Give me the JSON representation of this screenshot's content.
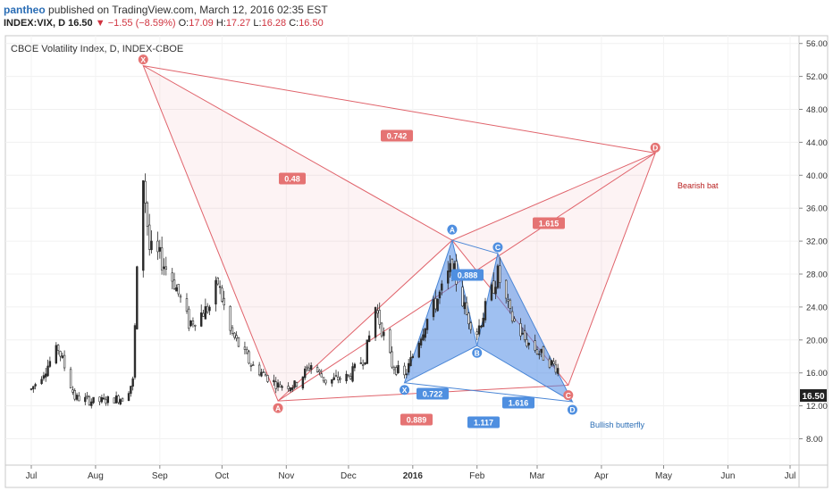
{
  "header": {
    "user": "pantheo",
    "published": "published on TradingView.com, March 12, 2016 02:35 EST",
    "symbol_line": "INDEX:VIX, D",
    "last": "16.50",
    "change": "−1.55 (−8.59%)",
    "o_label": "O:",
    "o": "17.09",
    "h_label": "H:",
    "h": "17.27",
    "l_label": "L:",
    "l": "16.28",
    "c_label": "C:",
    "c": "16.50"
  },
  "chart_data": {
    "type": "candlestick",
    "title": "CBOE Volatility Index, D, INDEX-CBOE",
    "x_ticks": [
      "Jul",
      "Aug",
      "Sep",
      "Oct",
      "Nov",
      "Dec",
      "2016",
      "Feb",
      "Mar",
      "Apr",
      "May",
      "Jun",
      "Jul"
    ],
    "y_ticks": [
      "8.00",
      "12.00",
      "16.00",
      "20.00",
      "24.00",
      "28.00",
      "32.00",
      "36.00",
      "40.00",
      "44.00",
      "48.00",
      "52.00",
      "56.00"
    ],
    "ylim": [
      7,
      60
    ],
    "last_price": "16.50",
    "patterns": [
      {
        "name": "Bearish bat",
        "points": [
          {
            "label": "X",
            "date": "2015-08-24",
            "value": 53.3
          },
          {
            "label": "A",
            "date": "2015-10-28",
            "value": 12.6
          },
          {
            "label": "A",
            "date": "2016-01-20",
            "value": 32.1
          },
          {
            "label": "D",
            "date": "2016-04-27",
            "value": 42.7
          }
        ],
        "ratios": [
          "0.48",
          "0.742",
          "1.615"
        ]
      },
      {
        "name": "Bullish butterfly",
        "points": [
          {
            "label": "X",
            "date": "2015-12-28",
            "value": 14.8
          },
          {
            "label": "A",
            "date": "2016-01-20",
            "value": 32.1
          },
          {
            "label": "B",
            "date": "2016-02-01",
            "value": 19.3
          },
          {
            "label": "C",
            "date": "2016-02-11",
            "value": 30.5
          },
          {
            "label": "D",
            "date": "2016-03-18",
            "value": 12.5
          }
        ],
        "ratios": [
          "0.722",
          "0.888",
          "1.616",
          "0.889",
          "1.117"
        ],
        "c_marker_label": "C"
      }
    ]
  }
}
